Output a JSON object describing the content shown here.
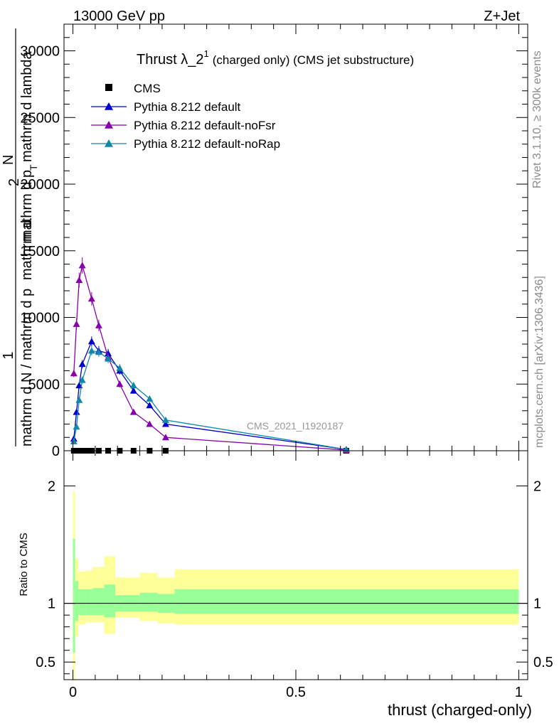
{
  "header": {
    "energy": "13000 GeV pp",
    "process": "Z+Jet"
  },
  "side": {
    "rivet": "Rivet 3.1.10, ≥ 300k events",
    "mcplots": "mcplots.cern.ch [arXiv:1306.3436]"
  },
  "watermark": "CMS_2021_I1920187",
  "chart_data": {
    "type": "line",
    "title_main": "Thrust λ_2",
    "title_sup": "1",
    "title_rest": "(charged only) (CMS jet substructure)",
    "xlabel": "thrust (charged-only)",
    "ylabel_lines": [
      "1",
      "mathrm d N / mathrm d p",
      "mathrm d",
      "2",
      "N",
      "mathrm d p",
      "T",
      "mathrm d lambda"
    ],
    "ratio_ylabel": "Ratio to CMS",
    "xlim": [
      -0.02,
      1.02
    ],
    "ylim": [
      0,
      32000
    ],
    "ratio_ylim": [
      0.35,
      2.3
    ],
    "x_ticks": [
      0,
      0.5,
      1
    ],
    "x_tick_labels": [
      "0",
      "0.5",
      "1"
    ],
    "y_ticks": [
      0,
      5000,
      10000,
      15000,
      20000,
      25000,
      30000
    ],
    "y_tick_labels": [
      "0",
      "5000",
      "10000",
      "15000",
      "20000",
      "25000",
      "30000"
    ],
    "ratio_ticks": [
      0.5,
      1,
      2
    ],
    "ratio_tick_labels": [
      "0.5",
      "1",
      "2"
    ],
    "x": [
      0.002,
      0.008,
      0.014,
      0.021,
      0.03,
      0.042,
      0.058,
      0.079,
      0.105,
      0.136,
      0.172,
      0.208,
      0.613
    ],
    "series": [
      {
        "name": "CMS",
        "color": "#000000",
        "marker": "square",
        "values": [
          0,
          0,
          0,
          0,
          0,
          0,
          0,
          0,
          0,
          0,
          0,
          0,
          0
        ]
      },
      {
        "name": "Pythia 8.212 default",
        "color": "#0000cc",
        "marker": "triangle",
        "values": [
          900,
          2900,
          4900,
          6500,
          8200,
          7500,
          7300,
          6000,
          4500,
          3400,
          2000,
          100
        ],
        "x": [
          0.002,
          0.008,
          0.014,
          0.021,
          0.042,
          0.058,
          0.079,
          0.105,
          0.136,
          0.172,
          0.208,
          0.613
        ]
      },
      {
        "name": "Pythia 8.212 default-noFsr",
        "color": "#8800aa",
        "marker": "triangle",
        "values": [
          5800,
          9500,
          12800,
          13900,
          11400,
          9400,
          7000,
          5000,
          2900,
          2000,
          1000,
          50
        ],
        "x": [
          0.002,
          0.008,
          0.014,
          0.021,
          0.042,
          0.058,
          0.079,
          0.105,
          0.136,
          0.172,
          0.208,
          0.613
        ]
      },
      {
        "name": "Pythia 8.212 default-noRap",
        "color": "#1188aa",
        "marker": "triangle",
        "values": [
          700,
          1800,
          3800,
          5300,
          7500,
          7400,
          6900,
          6200,
          4900,
          3900,
          2300,
          100
        ],
        "x": [
          0.002,
          0.008,
          0.014,
          0.021,
          0.042,
          0.058,
          0.079,
          0.105,
          0.136,
          0.172,
          0.208,
          0.613
        ]
      }
    ],
    "ratio_bands": {
      "edges": [
        0.0,
        0.005,
        0.012,
        0.028,
        0.044,
        0.07,
        0.095,
        0.15,
        0.19,
        0.228,
        1.0
      ],
      "yellow_low": [
        0.35,
        0.72,
        0.82,
        0.84,
        0.84,
        0.74,
        0.88,
        0.85,
        0.83,
        0.82
      ],
      "yellow_high": [
        1.95,
        1.38,
        1.27,
        1.28,
        1.31,
        1.4,
        1.22,
        1.26,
        1.22,
        1.29
      ],
      "green_low": [
        0.58,
        0.85,
        0.9,
        0.9,
        0.9,
        0.88,
        0.93,
        0.93,
        0.92,
        0.91
      ],
      "green_high": [
        1.55,
        1.19,
        1.12,
        1.12,
        1.13,
        1.16,
        1.07,
        1.09,
        1.08,
        1.12
      ],
      "yellow_color": "#ffff99",
      "green_color": "#99ff99"
    }
  }
}
